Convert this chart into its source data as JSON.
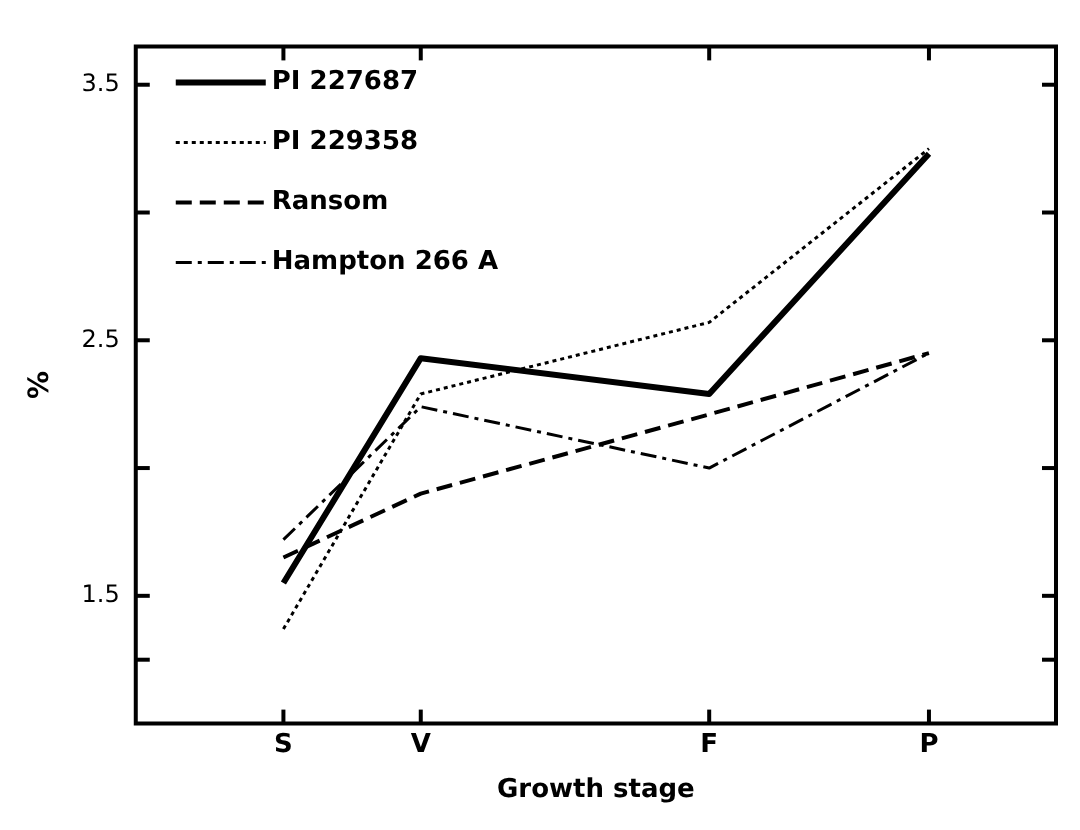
{
  "chart_data": {
    "type": "line",
    "xlabel": "Growth stage",
    "ylabel": "%",
    "categories": [
      "S",
      "V",
      "F",
      "P"
    ],
    "ylim": [
      1.0,
      3.65
    ],
    "yticks": [
      {
        "value": 1.25,
        "label": null
      },
      1.5,
      {
        "value": 2.0,
        "label": null
      },
      2.5,
      {
        "value": 3.0,
        "label": null
      },
      3.5
    ],
    "grid": false,
    "legend": "top left",
    "marker": "none",
    "series": [
      {
        "name": "PI 227687",
        "color": "#000000",
        "line_style": "solid",
        "values": [
          1.55,
          2.43,
          2.29,
          3.23
        ]
      },
      {
        "name": "PI 229358",
        "color": "#000000",
        "line_style": "dotted",
        "values": [
          1.37,
          2.29,
          2.57,
          3.25
        ]
      },
      {
        "name": "Ransom",
        "color": "#000000",
        "line_style": "dashed",
        "values": [
          1.65,
          1.9,
          2.21,
          2.45
        ]
      },
      {
        "name": "Hampton 266 A",
        "color": "#000000",
        "line_style": "dashdot",
        "values": [
          1.72,
          2.24,
          2.0,
          2.45
        ]
      }
    ]
  }
}
